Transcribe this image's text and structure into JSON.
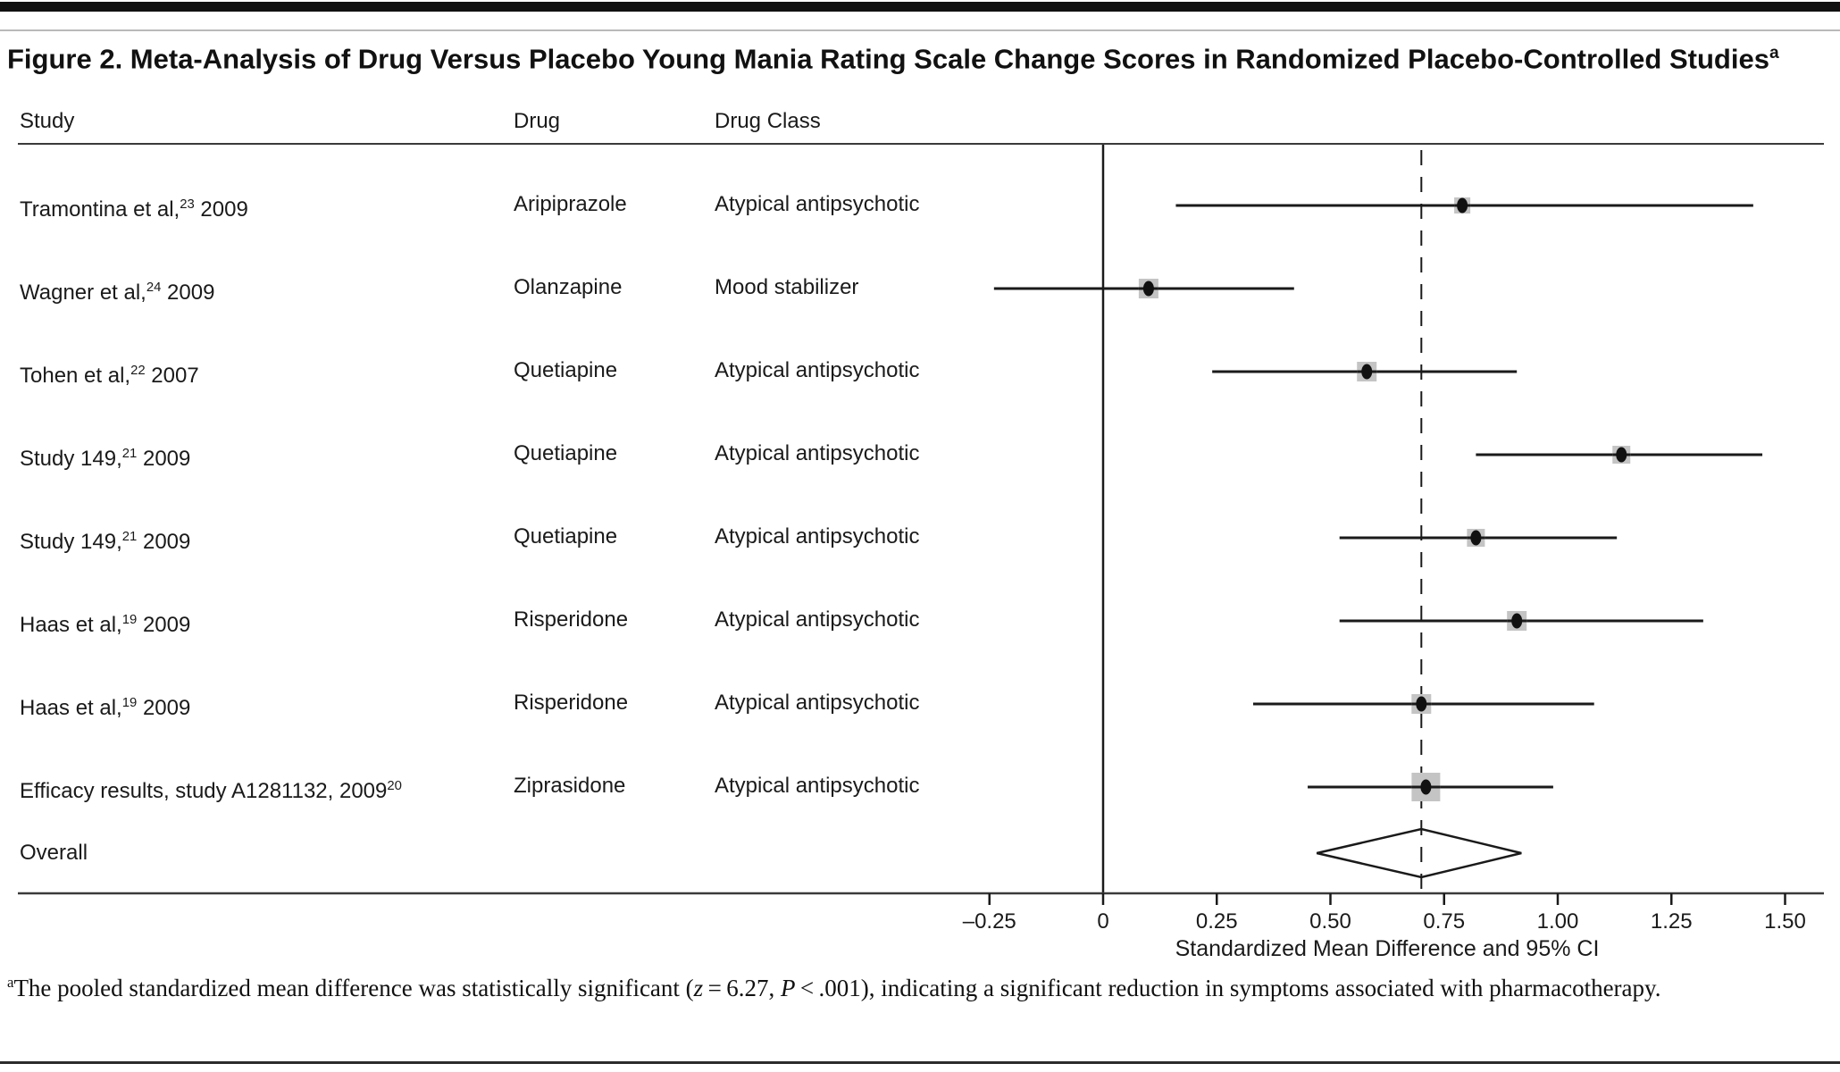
{
  "figure": {
    "title": "Figure 2. Meta-Analysis of Drug Versus Placebo Young Mania Rating Scale Change Scores in Randomized Placebo-Controlled Studies",
    "title_superscript": "a"
  },
  "columns": {
    "study": "Study",
    "drug": "Drug",
    "drug_class": "Drug Class"
  },
  "rows": [
    {
      "study_pre": "Tramontina et al,",
      "study_sup": "23",
      "study_post": " 2009",
      "drug": "Aripiprazole",
      "drug_class": "Atypical antipsychotic",
      "smd": 0.79,
      "ci_low": 0.16,
      "ci_high": 1.43,
      "marker_size": 18
    },
    {
      "study_pre": "Wagner et al,",
      "study_sup": "24",
      "study_post": " 2009",
      "drug": "Olanzapine",
      "drug_class": "Mood stabilizer",
      "smd": 0.1,
      "ci_low": -0.24,
      "ci_high": 0.42,
      "marker_size": 22
    },
    {
      "study_pre": "Tohen et al,",
      "study_sup": "22",
      "study_post": " 2007",
      "drug": "Quetiapine",
      "drug_class": "Atypical antipsychotic",
      "smd": 0.58,
      "ci_low": 0.24,
      "ci_high": 0.91,
      "marker_size": 22
    },
    {
      "study_pre": "Study 149,",
      "study_sup": "21",
      "study_post": " 2009",
      "drug": "Quetiapine",
      "drug_class": "Atypical antipsychotic",
      "smd": 1.14,
      "ci_low": 0.82,
      "ci_high": 1.45,
      "marker_size": 20
    },
    {
      "study_pre": "Study 149,",
      "study_sup": "21",
      "study_post": " 2009",
      "drug": "Quetiapine",
      "drug_class": "Atypical antipsychotic",
      "smd": 0.82,
      "ci_low": 0.52,
      "ci_high": 1.13,
      "marker_size": 20
    },
    {
      "study_pre": "Haas et al,",
      "study_sup": "19",
      "study_post": " 2009",
      "drug": "Risperidone",
      "drug_class": "Atypical antipsychotic",
      "smd": 0.91,
      "ci_low": 0.52,
      "ci_high": 1.32,
      "marker_size": 22
    },
    {
      "study_pre": "Haas et al,",
      "study_sup": "19",
      "study_post": " 2009",
      "drug": "Risperidone",
      "drug_class": "Atypical antipsychotic",
      "smd": 0.7,
      "ci_low": 0.33,
      "ci_high": 1.08,
      "marker_size": 22
    },
    {
      "study_pre": "Efficacy results, study A1281132, 2009",
      "study_sup": "20",
      "study_post": "",
      "drug": "Ziprasidone",
      "drug_class": "Atypical antipsychotic",
      "smd": 0.71,
      "ci_low": 0.45,
      "ci_high": 0.99,
      "marker_size": 32
    }
  ],
  "overall": {
    "label": "Overall",
    "smd": 0.7,
    "ci_low": 0.47,
    "ci_high": 0.92
  },
  "axis": {
    "label": "Standardized Mean Difference and 95% CI",
    "ticks": [
      {
        "label": "–0.25",
        "value": -0.25
      },
      {
        "label": "0",
        "value": 0
      },
      {
        "label": "0.25",
        "value": 0.25
      },
      {
        "label": "0.50",
        "value": 0.5
      },
      {
        "label": "0.75",
        "value": 0.75
      },
      {
        "label": "1.00",
        "value": 1.0
      },
      {
        "label": "1.25",
        "value": 1.25
      },
      {
        "label": "1.50",
        "value": 1.5
      }
    ],
    "zero_reference_value": 0,
    "dashed_reference_value": 0.7
  },
  "footnote": {
    "marker": "a",
    "segments": [
      {
        "text": "The pooled standardized mean difference was statistically significant ("
      },
      {
        "text": "z",
        "italic": true
      },
      {
        "text": " = 6.27, "
      },
      {
        "text": "P",
        "italic": true
      },
      {
        "text": " < .001), indicating a significant reduction in symptoms associated with pharmacotherapy."
      }
    ]
  },
  "colors": {
    "text": "#1a1a1a",
    "line": "#1a1a1a",
    "weight_square": "#c4c4c4",
    "marker": "#111111",
    "background": "#ffffff",
    "top_bar": "#111111"
  },
  "chart_data": {
    "type": "scatter",
    "subtype": "forest_plot",
    "title": "Figure 2. Meta-Analysis of Drug Versus Placebo Young Mania Rating Scale Change Scores in Randomized Placebo-Controlled Studies",
    "xlabel": "Standardized Mean Difference and 95% CI",
    "xlim": [
      -0.25,
      1.5
    ],
    "x_ticks": [
      -0.25,
      0,
      0.25,
      0.5,
      0.75,
      1.0,
      1.25,
      1.5
    ],
    "reference_line_x": 0,
    "dashed_line_x": 0.7,
    "grid": false,
    "studies": [
      {
        "study": "Tramontina et al, 2009 (ref 23)",
        "drug": "Aripiprazole",
        "drug_class": "Atypical antipsychotic",
        "smd": 0.79,
        "ci95": [
          0.16,
          1.43
        ]
      },
      {
        "study": "Wagner et al, 2009 (ref 24)",
        "drug": "Olanzapine",
        "drug_class": "Mood stabilizer",
        "smd": 0.1,
        "ci95": [
          -0.24,
          0.42
        ]
      },
      {
        "study": "Tohen et al, 2007 (ref 22)",
        "drug": "Quetiapine",
        "drug_class": "Atypical antipsychotic",
        "smd": 0.58,
        "ci95": [
          0.24,
          0.91
        ]
      },
      {
        "study": "Study 149, 2009 (ref 21)",
        "drug": "Quetiapine",
        "drug_class": "Atypical antipsychotic",
        "smd": 1.14,
        "ci95": [
          0.82,
          1.45
        ]
      },
      {
        "study": "Study 149, 2009 (ref 21)",
        "drug": "Quetiapine",
        "drug_class": "Atypical antipsychotic",
        "smd": 0.82,
        "ci95": [
          0.52,
          1.13
        ]
      },
      {
        "study": "Haas et al, 2009 (ref 19)",
        "drug": "Risperidone",
        "drug_class": "Atypical antipsychotic",
        "smd": 0.91,
        "ci95": [
          0.52,
          1.32
        ]
      },
      {
        "study": "Haas et al, 2009 (ref 19)",
        "drug": "Risperidone",
        "drug_class": "Atypical antipsychotic",
        "smd": 0.7,
        "ci95": [
          0.33,
          1.08
        ]
      },
      {
        "study": "Efficacy results, study A1281132, 2009 (ref 20)",
        "drug": "Ziprasidone",
        "drug_class": "Atypical antipsychotic",
        "smd": 0.71,
        "ci95": [
          0.45,
          0.99
        ]
      }
    ],
    "overall": {
      "label": "Overall",
      "smd": 0.7,
      "ci95": [
        0.47,
        0.92
      ],
      "marker": "open diamond"
    }
  }
}
